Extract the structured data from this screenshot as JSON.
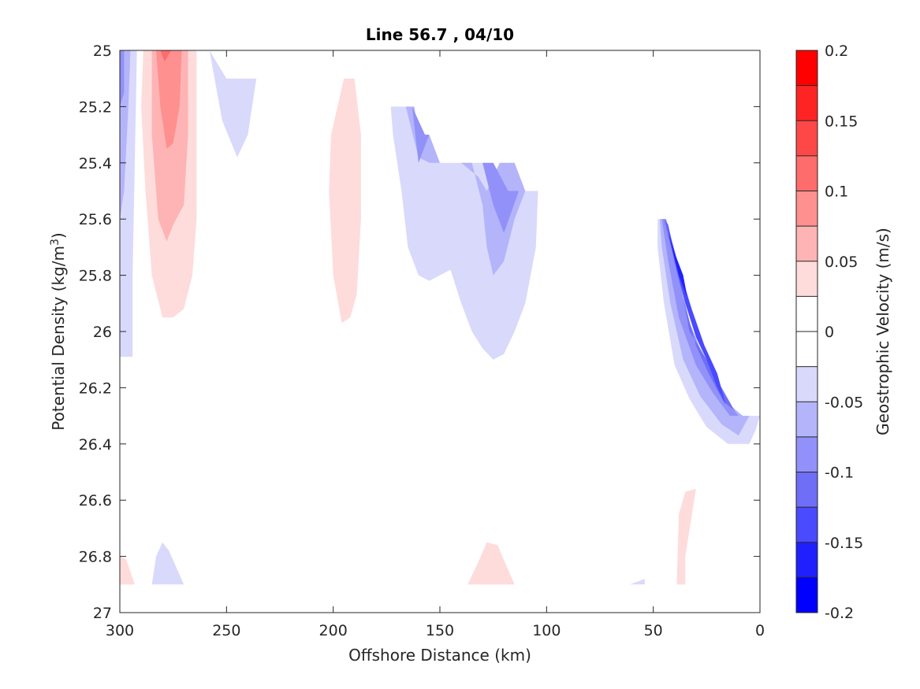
{
  "chart_data": {
    "type": "contourf",
    "title": "Line 56.7 , 04/10",
    "xlabel": "Offshore Distance (km)",
    "ylabel_prefix": "Potential Density (kg/m",
    "ylabel_sup": "3",
    "ylabel_suffix": ")",
    "xlim": [
      300,
      0
    ],
    "x_reversed": true,
    "ylim": [
      25,
      27
    ],
    "y_reversed": true,
    "xticks": [
      300,
      250,
      200,
      150,
      100,
      50,
      0
    ],
    "xtick_labels": [
      "300",
      "250",
      "200",
      "150",
      "100",
      "50",
      "0"
    ],
    "yticks": [
      25,
      25.2,
      25.4,
      25.6,
      25.8,
      26,
      26.2,
      26.4,
      26.6,
      26.8,
      27
    ],
    "ytick_labels": [
      "25",
      "25.2",
      "25.4",
      "25.6",
      "25.8",
      "26",
      "26.2",
      "26.4",
      "26.6",
      "26.8",
      "27"
    ],
    "grid": false,
    "colorbar": {
      "label": "Geostrophic Velocity (m/s)",
      "range": [
        -0.2,
        0.2
      ],
      "levels": [
        -0.2,
        -0.175,
        -0.15,
        -0.125,
        -0.1,
        -0.075,
        -0.05,
        -0.025,
        0,
        0.025,
        0.05,
        0.075,
        0.1,
        0.125,
        0.15,
        0.175,
        0.2
      ],
      "tick_values": [
        0.2,
        0.15,
        0.1,
        0.05,
        0,
        -0.05,
        -0.1,
        -0.15,
        -0.2
      ],
      "tick_labels": [
        "0.2",
        "0.15",
        "0.1",
        "0.05",
        "0",
        "-0.05",
        "-0.1",
        "-0.15",
        "-0.2"
      ],
      "colors": [
        "#0000ff",
        "#2020ff",
        "#4a4aff",
        "#6e6ef7",
        "#9191f9",
        "#b4b4fb",
        "#d9d9fc",
        "#ffffff",
        "#ffffff",
        "#fedcdc",
        "#feb4b4",
        "#fe9090",
        "#fe6c6c",
        "#fe4848",
        "#fe2424",
        "#ff0000"
      ]
    },
    "regions": [
      {
        "value": -0.04,
        "color": "#d9d9fc",
        "points": [
          [
            300,
            25
          ],
          [
            292,
            25
          ],
          [
            294,
            25.8
          ],
          [
            294,
            26.09
          ],
          [
            300,
            26.09
          ]
        ]
      },
      {
        "value": -0.06,
        "color": "#b4b4fb",
        "points": [
          [
            300,
            25
          ],
          [
            295,
            25
          ],
          [
            296,
            25.2
          ],
          [
            298,
            25.5
          ],
          [
            300,
            25.6
          ]
        ]
      },
      {
        "value": -0.08,
        "color": "#9191f9",
        "points": [
          [
            300,
            25
          ],
          [
            298,
            25
          ],
          [
            298,
            25.15
          ],
          [
            300,
            25.2
          ]
        ]
      },
      {
        "value": 0.04,
        "color": "#fedcdc",
        "points": [
          [
            289,
            25
          ],
          [
            264,
            25
          ],
          [
            264,
            25.6
          ],
          [
            266,
            25.8
          ],
          [
            270,
            25.92
          ],
          [
            275,
            25.95
          ],
          [
            280,
            25.95
          ],
          [
            285,
            25.8
          ],
          [
            288,
            25.5
          ],
          [
            290,
            25.2
          ]
        ]
      },
      {
        "value": 0.06,
        "color": "#feb4b4",
        "points": [
          [
            285,
            25
          ],
          [
            268,
            25
          ],
          [
            268,
            25.3
          ],
          [
            270,
            25.55
          ],
          [
            275,
            25.62
          ],
          [
            278,
            25.68
          ],
          [
            282,
            25.6
          ],
          [
            285,
            25.3
          ]
        ]
      },
      {
        "value": 0.08,
        "color": "#fe9090",
        "points": [
          [
            283,
            25
          ],
          [
            271,
            25
          ],
          [
            272,
            25.2
          ],
          [
            275,
            25.33
          ],
          [
            278,
            25.35
          ],
          [
            281,
            25.2
          ]
        ]
      },
      {
        "value": 0.1,
        "color": "#fe6c6c",
        "points": [
          [
            281,
            25
          ],
          [
            276,
            25
          ],
          [
            279,
            25.04
          ]
        ]
      },
      {
        "value": -0.04,
        "color": "#d9d9fc",
        "points": [
          [
            258,
            25
          ],
          [
            250,
            25.1
          ],
          [
            236,
            25.1
          ],
          [
            240,
            25.3
          ],
          [
            245,
            25.38
          ],
          [
            252,
            25.25
          ]
        ]
      },
      {
        "value": 0.04,
        "color": "#fedcdc",
        "points": [
          [
            195,
            25.1
          ],
          [
            190,
            25.1
          ],
          [
            187,
            25.3
          ],
          [
            187,
            25.6
          ],
          [
            189,
            25.87
          ],
          [
            192,
            25.95
          ],
          [
            196,
            25.97
          ],
          [
            200,
            25.8
          ],
          [
            202,
            25.5
          ],
          [
            201,
            25.3
          ]
        ]
      },
      {
        "value": -0.04,
        "color": "#d9d9fc",
        "points": [
          [
            173,
            25.2
          ],
          [
            166,
            25.2
          ],
          [
            160,
            25.3
          ],
          [
            150,
            25.4
          ],
          [
            130,
            25.4
          ],
          [
            120,
            25.5
          ],
          [
            104,
            25.5
          ],
          [
            105,
            25.7
          ],
          [
            110,
            25.9
          ],
          [
            115,
            26
          ],
          [
            120,
            26.08
          ],
          [
            125,
            26.1
          ],
          [
            130,
            26.06
          ],
          [
            135,
            26
          ],
          [
            140,
            25.9
          ],
          [
            145,
            25.78
          ],
          [
            150,
            25.8
          ],
          [
            155,
            25.82
          ],
          [
            160,
            25.8
          ],
          [
            165,
            25.7
          ],
          [
            168,
            25.5
          ],
          [
            172,
            25.3
          ]
        ]
      },
      {
        "value": -0.06,
        "color": "#b4b4fb",
        "points": [
          [
            166,
            25.2
          ],
          [
            162,
            25.2
          ],
          [
            160,
            25.3
          ],
          [
            155,
            25.3
          ],
          [
            150,
            25.4
          ],
          [
            135,
            25.4
          ],
          [
            130,
            25.55
          ],
          [
            128,
            25.7
          ],
          [
            125,
            25.8
          ],
          [
            120,
            25.75
          ],
          [
            115,
            25.6
          ],
          [
            110,
            25.5
          ],
          [
            115,
            25.4
          ],
          [
            122,
            25.4
          ],
          [
            128,
            25.5
          ],
          [
            132,
            25.45
          ],
          [
            140,
            25.4
          ],
          [
            155,
            25.4
          ],
          [
            160,
            25.38
          ]
        ]
      },
      {
        "value": -0.08,
        "color": "#9191f9",
        "points": [
          [
            163,
            25.2
          ],
          [
            157,
            25.3
          ],
          [
            155,
            25.3
          ],
          [
            160,
            25.4
          ]
        ]
      },
      {
        "value": -0.08,
        "color": "#9191f9",
        "points": [
          [
            130,
            25.4
          ],
          [
            125,
            25.4
          ],
          [
            118,
            25.5
          ],
          [
            113,
            25.5
          ],
          [
            120,
            25.65
          ],
          [
            125,
            25.55
          ]
        ]
      },
      {
        "value": -0.04,
        "color": "#d9d9fc",
        "points": [
          [
            48,
            25.6
          ],
          [
            45,
            25.6
          ],
          [
            40,
            25.8
          ],
          [
            32,
            26.0
          ],
          [
            25,
            26.1
          ],
          [
            18,
            26.25
          ],
          [
            8,
            26.3
          ],
          [
            0,
            26.3
          ],
          [
            2,
            26.35
          ],
          [
            5,
            26.4
          ],
          [
            15,
            26.4
          ],
          [
            25,
            26.34
          ],
          [
            33,
            26.24
          ],
          [
            40,
            26.12
          ],
          [
            45,
            25.9
          ],
          [
            48,
            25.7
          ]
        ]
      },
      {
        "value": -0.06,
        "color": "#b4b4fb",
        "points": [
          [
            47,
            25.6
          ],
          [
            44,
            25.6
          ],
          [
            38,
            25.8
          ],
          [
            32,
            26.0
          ],
          [
            24,
            26.12
          ],
          [
            16,
            26.25
          ],
          [
            8,
            26.3
          ],
          [
            5,
            26.3
          ],
          [
            10,
            26.37
          ],
          [
            18,
            26.33
          ],
          [
            28,
            26.23
          ],
          [
            36,
            26.1
          ],
          [
            42,
            25.9
          ],
          [
            46,
            25.7
          ]
        ]
      },
      {
        "value": -0.08,
        "color": "#9191f9",
        "points": [
          [
            46,
            25.6
          ],
          [
            44,
            25.6
          ],
          [
            40,
            25.75
          ],
          [
            34,
            25.95
          ],
          [
            26,
            26.1
          ],
          [
            18,
            26.22
          ],
          [
            10,
            26.3
          ],
          [
            14,
            26.3
          ],
          [
            22,
            26.22
          ],
          [
            30,
            26.12
          ],
          [
            38,
            25.95
          ],
          [
            43,
            25.75
          ]
        ]
      },
      {
        "value": -0.1,
        "color": "#6e6ef7",
        "points": [
          [
            45,
            25.6
          ],
          [
            43,
            25.62
          ],
          [
            38,
            25.8
          ],
          [
            33,
            26.0
          ],
          [
            25,
            26.1
          ],
          [
            18,
            26.2
          ],
          [
            12,
            26.28
          ],
          [
            17,
            26.25
          ],
          [
            24,
            26.15
          ],
          [
            30,
            26.05
          ],
          [
            36,
            25.88
          ],
          [
            41,
            25.72
          ]
        ]
      },
      {
        "value": -0.12,
        "color": "#4a4aff",
        "points": [
          [
            44,
            25.6
          ],
          [
            40,
            25.75
          ],
          [
            35,
            25.9
          ],
          [
            30,
            26.02
          ],
          [
            25,
            26.1
          ],
          [
            20,
            26.2
          ],
          [
            16,
            26.26
          ],
          [
            20,
            26.15
          ],
          [
            26,
            26.05
          ],
          [
            32,
            25.92
          ],
          [
            38,
            25.77
          ]
        ]
      },
      {
        "value": -0.14,
        "color": "#2020ff",
        "points": [
          [
            43,
            25.65
          ],
          [
            38,
            25.8
          ],
          [
            34,
            25.88
          ],
          [
            36,
            25.8
          ],
          [
            40,
            25.72
          ]
        ]
      },
      {
        "value": 0.04,
        "color": "#fedcdc",
        "points": [
          [
            300,
            26.8
          ],
          [
            297,
            26.81
          ],
          [
            293,
            26.9
          ],
          [
            300,
            26.9
          ]
        ]
      },
      {
        "value": -0.04,
        "color": "#d9d9fc",
        "points": [
          [
            280,
            26.75
          ],
          [
            277,
            26.78
          ],
          [
            270,
            26.9
          ],
          [
            285,
            26.9
          ],
          [
            283,
            26.8
          ]
        ]
      },
      {
        "value": 0.04,
        "color": "#fedcdc",
        "points": [
          [
            128,
            26.75
          ],
          [
            123,
            26.76
          ],
          [
            115,
            26.9
          ],
          [
            137,
            26.9
          ],
          [
            132,
            26.82
          ]
        ]
      },
      {
        "value": -0.04,
        "color": "#d9d9fc",
        "points": [
          [
            54,
            26.88
          ],
          [
            61,
            26.9
          ],
          [
            54,
            26.9
          ]
        ]
      },
      {
        "value": 0.04,
        "color": "#fedcdc",
        "points": [
          [
            30,
            26.56
          ],
          [
            35,
            26.57
          ],
          [
            38,
            26.65
          ],
          [
            39,
            26.9
          ],
          [
            35,
            26.9
          ],
          [
            35,
            26.8
          ]
        ]
      }
    ]
  }
}
